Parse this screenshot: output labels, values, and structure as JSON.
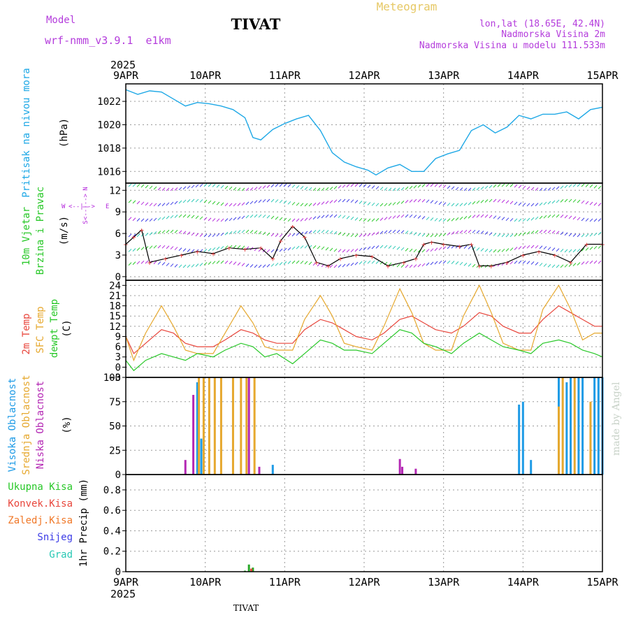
{
  "header": {
    "model_label": "Model",
    "model_name": "wrf-nmm_v3.9.1  e1km",
    "station": "TIVAT",
    "chart_title": "Meteogram",
    "lonlat": "lon,lat (18.65E, 42.4N)",
    "elevation": "Nadmorska Visina 2m",
    "model_elevation": "Nadmorska Visina u modelu 111.533m",
    "year": "2025",
    "footer_station": "TIVAT",
    "credit": "made by Angel"
  },
  "x_axis": {
    "ticks": [
      "9APR",
      "10APR",
      "11APR",
      "12APR",
      "13APR",
      "14APR",
      "15APR"
    ],
    "range_days": [
      9,
      15
    ]
  },
  "colors": {
    "pressure": "#1ea8e6",
    "t2m": "#e8463c",
    "tsfc": "#e6a82e",
    "dew": "#28c828",
    "high_cloud": "#1e9be6",
    "mid_cloud": "#e6a82e",
    "low_cloud": "#b428b4",
    "total_precip": "#28a828",
    "conv_precip": "#e8463c",
    "frz_precip": "#f07828",
    "snow": "#3c3ce6",
    "graupel": "#28c8b4",
    "wind_label": "#28c828",
    "compass": "#b428dc"
  },
  "panels": {
    "pressure": {
      "label": "Pritisak na nivou mora",
      "unit": "(hPa)",
      "yticks": [
        "1016",
        "1018",
        "1020",
        "1022"
      ]
    },
    "wind": {
      "label1": "10m Vjetar",
      "label2": "Brzina i Pravac",
      "unit": "(m/s)",
      "yticks": [
        "0",
        "3",
        "6",
        "9",
        "12"
      ],
      "compass_n": "N",
      "compass_s": "S",
      "compass_w": "W",
      "compass_e": "E"
    },
    "temp": {
      "label_t2m": "2m Temp",
      "label_tsfc": "SFC Temp",
      "label_dew": "dewpt Temp",
      "unit": "(C)",
      "yticks": [
        "-3",
        "0",
        "3",
        "6",
        "9",
        "12",
        "15",
        "18",
        "21",
        "24"
      ]
    },
    "cloud": {
      "label_high": "Visoka Oblacnost",
      "label_mid": "Srednja Oblacnost",
      "label_low": "Niska Oblacnost",
      "unit": "(%)",
      "yticks": [
        "0",
        "25",
        "50",
        "75",
        "100"
      ]
    },
    "precip": {
      "label_total": "Ukupna Kisa",
      "label_conv": "Konvek.Kisa",
      "label_frz": "Zaledj.Kisa",
      "label_snow": "Snijeg",
      "label_graupel": "Grad",
      "unit": "1hr Precip (mm)",
      "yticks": [
        "0",
        "0.2",
        "0.4",
        "0.6",
        "0.8"
      ]
    }
  },
  "chart_data": [
    {
      "type": "line",
      "title": "",
      "ylabel": "Pritisak na nivou mora (hPa)",
      "ylim": [
        1015,
        1023.5
      ],
      "x": [
        9.0,
        9.15,
        9.3,
        9.45,
        9.6,
        9.75,
        9.9,
        10.05,
        10.2,
        10.35,
        10.5,
        10.6,
        10.7,
        10.85,
        11.0,
        11.15,
        11.3,
        11.45,
        11.6,
        11.75,
        11.9,
        12.05,
        12.15,
        12.3,
        12.45,
        12.6,
        12.75,
        12.9,
        13.05,
        13.2,
        13.35,
        13.5,
        13.65,
        13.8,
        13.95,
        14.1,
        14.25,
        14.4,
        14.55,
        14.7,
        14.85,
        15.0
      ],
      "series": [
        {
          "name": "",
          "values": [
            1023,
            1022.6,
            1022.9,
            1022.8,
            1022.2,
            1021.6,
            1021.9,
            1021.8,
            1021.6,
            1021.3,
            1020.6,
            1018.9,
            1018.7,
            1019.6,
            1020.1,
            1020.5,
            1020.8,
            1019.5,
            1017.6,
            1016.8,
            1016.4,
            1016.1,
            1015.7,
            1016.3,
            1016.6,
            1016.0,
            1016.0,
            1017.1,
            1017.5,
            1017.8,
            1019.5,
            1020.0,
            1019.3,
            1019.8,
            1020.8,
            1020.5,
            1020.9,
            1020.9,
            1021.1,
            1020.5,
            1021.3,
            1021.5
          ]
        }
      ]
    },
    {
      "type": "line",
      "title": "",
      "ylabel": "10m Vjetar Brzina i Pravac (m/s)",
      "ylim": [
        -0.5,
        13
      ],
      "x": [
        9.0,
        9.1,
        9.2,
        9.3,
        9.5,
        9.7,
        9.9,
        10.1,
        10.3,
        10.5,
        10.7,
        10.85,
        10.95,
        11.1,
        11.25,
        11.4,
        11.55,
        11.7,
        11.9,
        12.1,
        12.3,
        12.5,
        12.65,
        12.75,
        12.85,
        13.0,
        13.2,
        13.35,
        13.45,
        13.6,
        13.8,
        14.0,
        14.2,
        14.4,
        14.6,
        14.8,
        15.0
      ],
      "series": [
        {
          "name": "",
          "values": [
            4.5,
            5.5,
            6.5,
            2.0,
            2.5,
            3.0,
            3.5,
            3.2,
            4.0,
            3.8,
            4.0,
            2.5,
            5.0,
            7.0,
            5.5,
            2.0,
            1.5,
            2.5,
            3.0,
            2.8,
            1.5,
            2.0,
            2.5,
            4.5,
            4.8,
            4.5,
            4.2,
            4.5,
            1.5,
            1.5,
            2.0,
            3.0,
            3.5,
            3.0,
            2.0,
            4.5,
            4.5
          ]
        }
      ]
    },
    {
      "type": "line",
      "title": "",
      "ylabel": "Temp (C)",
      "ylim": [
        -3,
        25.5
      ],
      "x": [
        9.0,
        9.1,
        9.25,
        9.45,
        9.6,
        9.75,
        9.9,
        10.1,
        10.25,
        10.45,
        10.6,
        10.75,
        10.9,
        11.1,
        11.25,
        11.45,
        11.6,
        11.75,
        11.9,
        12.1,
        12.25,
        12.45,
        12.6,
        12.75,
        12.9,
        13.1,
        13.25,
        13.45,
        13.6,
        13.75,
        13.95,
        14.1,
        14.25,
        14.45,
        14.6,
        14.75,
        14.9,
        15.0
      ],
      "series": [
        {
          "name": "2m Temp",
          "values": [
            9,
            4,
            7,
            11,
            10,
            7,
            6,
            6,
            8,
            11,
            10,
            8,
            7,
            7,
            11,
            14,
            13,
            11,
            9,
            8,
            10,
            14,
            15,
            13,
            11,
            10,
            12,
            16,
            15,
            12,
            10,
            10,
            14,
            18,
            16,
            14,
            12,
            12
          ]
        },
        {
          "name": "SFC Temp",
          "values": [
            9,
            2,
            10,
            18,
            12,
            5,
            4,
            4,
            10,
            18,
            13,
            6,
            5,
            5,
            14,
            21,
            15,
            7,
            6,
            5,
            12,
            23,
            16,
            7,
            5,
            5,
            15,
            24,
            16,
            7,
            5,
            5,
            17,
            24,
            17,
            8,
            10,
            10
          ]
        },
        {
          "name": "dewpt Temp",
          "values": [
            2,
            -1,
            2,
            4,
            3,
            2,
            4,
            3,
            5,
            7,
            6,
            3,
            4,
            1,
            4,
            8,
            7,
            5,
            5,
            4,
            7,
            11,
            10,
            7,
            6,
            4,
            7,
            10,
            8,
            6,
            5,
            4,
            7,
            8,
            7,
            5,
            4,
            3
          ]
        }
      ]
    },
    {
      "type": "bar",
      "title": "",
      "ylabel": "Oblacnost (%)",
      "ylim": [
        0,
        100
      ],
      "series": [
        {
          "name": "Visoka Oblacnost",
          "x": [
            9.9,
            9.95,
            10.85,
            13.95,
            14.0,
            14.1,
            14.45,
            14.55,
            14.6,
            14.7,
            14.75,
            14.9,
            14.95,
            15.0
          ],
          "values": [
            95,
            37,
            10,
            72,
            75,
            15,
            100,
            95,
            100,
            100,
            100,
            100,
            100,
            100
          ]
        },
        {
          "name": "Srednja Oblacnost",
          "x": [
            9.92,
            9.98,
            10.05,
            10.12,
            10.2,
            10.35,
            10.45,
            10.52,
            10.62,
            14.45,
            14.5,
            14.65,
            14.85
          ],
          "values": [
            100,
            100,
            100,
            100,
            100,
            100,
            100,
            100,
            100,
            70,
            100,
            100,
            75
          ]
        },
        {
          "name": "Niska Oblacnost",
          "x": [
            9.75,
            9.85,
            10.55,
            10.68,
            12.45,
            12.48,
            12.65
          ],
          "values": [
            15,
            82,
            100,
            8,
            16,
            8,
            6
          ]
        }
      ]
    },
    {
      "type": "bar",
      "title": "",
      "ylabel": "1hr Precip (mm)",
      "ylim": [
        0,
        0.95
      ],
      "series": [
        {
          "name": "Ukupna Kisa",
          "x": [
            10.5,
            10.55,
            10.6
          ],
          "values": [
            0.01,
            0.07,
            0.04
          ]
        },
        {
          "name": "Konvek.Kisa",
          "x": [
            10.58
          ],
          "values": [
            0.03
          ]
        }
      ]
    }
  ]
}
